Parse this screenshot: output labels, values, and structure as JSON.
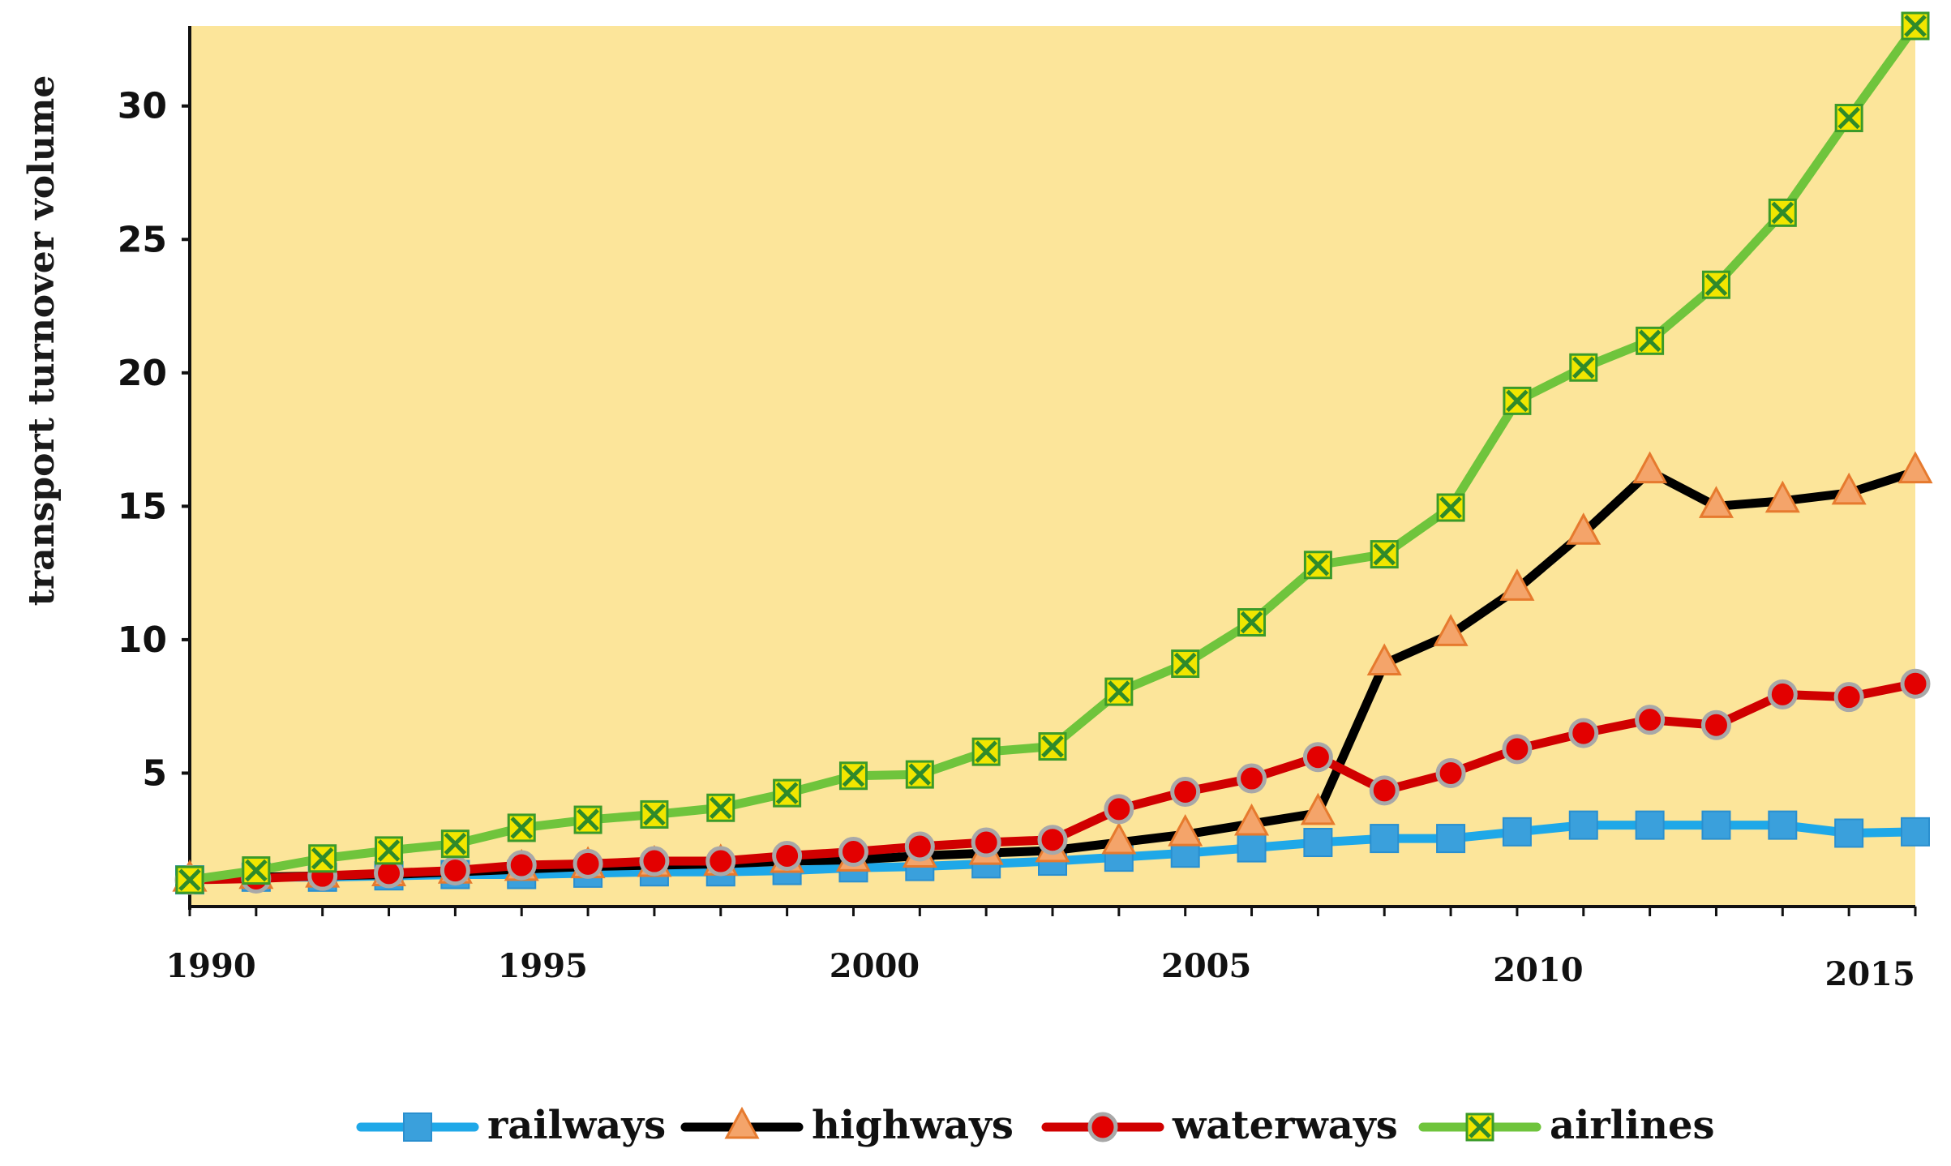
{
  "chart_data": {
    "type": "line",
    "title": "",
    "xlabel": "",
    "ylabel": "transport turnover volume",
    "x": [
      1990,
      1991,
      1992,
      1993,
      1994,
      1995,
      1996,
      1997,
      1998,
      1999,
      2000,
      2001,
      2002,
      2003,
      2004,
      2005,
      2006,
      2007,
      2008,
      2009,
      2010,
      2011,
      2012,
      2013,
      2014,
      2015,
      2016
    ],
    "x_ticks": [
      "1990",
      "1995",
      "2000",
      "2005",
      "2010",
      "2015"
    ],
    "y_ticks": [
      "5",
      "10",
      "15",
      "20",
      "25",
      "30"
    ],
    "ylim": [
      0,
      33
    ],
    "xlim": [
      1990,
      2016
    ],
    "grid": false,
    "legend_position": "bottom",
    "series": [
      {
        "name": "railways",
        "color": "#1fa8e8",
        "marker": "square",
        "marker_fill": "#3aa0dc",
        "values": [
          1.0,
          1.1,
          1.1,
          1.15,
          1.2,
          1.2,
          1.25,
          1.3,
          1.3,
          1.35,
          1.45,
          1.5,
          1.6,
          1.7,
          1.85,
          2.0,
          2.2,
          2.4,
          2.55,
          2.55,
          2.8,
          3.05,
          3.05,
          3.05,
          3.05,
          2.75,
          2.8
        ]
      },
      {
        "name": "highways",
        "color": "#000000",
        "marker": "triangle",
        "marker_fill": "#f4a46a",
        "values": [
          1.0,
          1.1,
          1.15,
          1.2,
          1.3,
          1.4,
          1.5,
          1.55,
          1.6,
          1.7,
          1.75,
          1.9,
          2.0,
          2.1,
          2.4,
          2.7,
          3.1,
          3.5,
          9.1,
          10.2,
          11.9,
          14.0,
          16.3,
          15.0,
          15.2,
          15.5,
          16.3
        ]
      },
      {
        "name": "waterways",
        "color": "#d00000",
        "marker": "circle",
        "marker_fill": "#e30000",
        "values": [
          1.0,
          1.05,
          1.15,
          1.25,
          1.35,
          1.55,
          1.6,
          1.7,
          1.7,
          1.9,
          2.05,
          2.25,
          2.4,
          2.5,
          3.65,
          4.3,
          4.8,
          5.6,
          4.35,
          5.0,
          5.9,
          6.5,
          7.0,
          6.8,
          7.95,
          7.85,
          8.35
        ]
      },
      {
        "name": "airlines",
        "color": "#6fc43c",
        "marker": "x-square",
        "marker_fill": "#f1e600",
        "values": [
          1.0,
          1.35,
          1.8,
          2.1,
          2.35,
          2.95,
          3.25,
          3.45,
          3.7,
          4.25,
          4.9,
          4.95,
          5.8,
          6.0,
          8.05,
          9.1,
          10.65,
          12.8,
          13.2,
          14.95,
          18.95,
          20.2,
          21.2,
          23.3,
          26.0,
          29.55,
          33.0
        ]
      }
    ],
    "plot_background": "#fce59a"
  }
}
